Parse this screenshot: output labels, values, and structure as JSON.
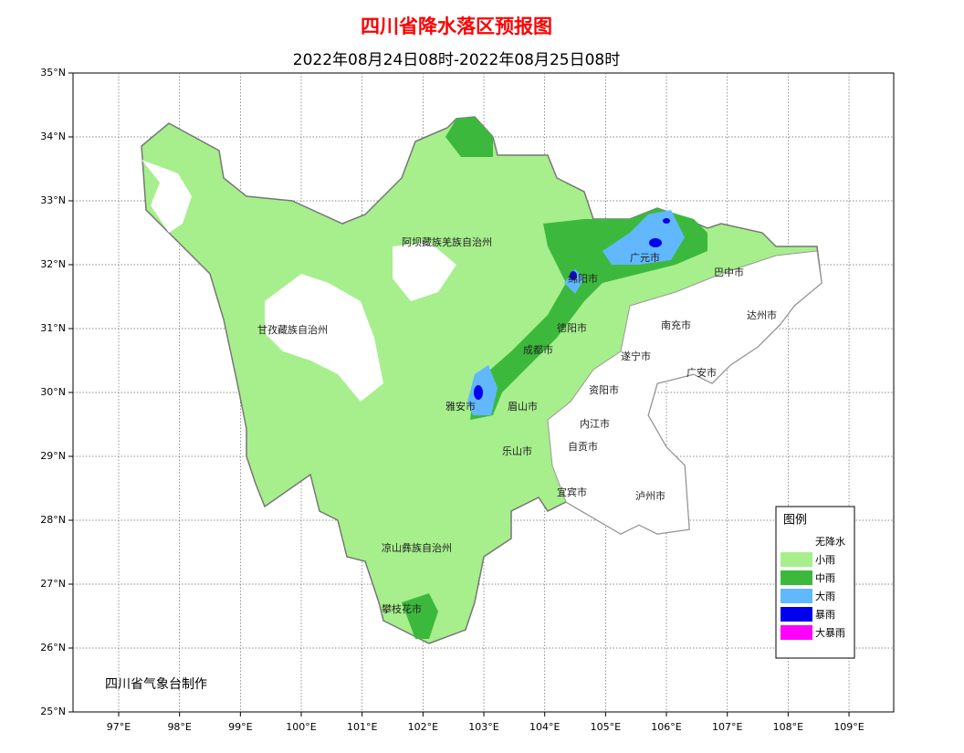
{
  "header": {
    "title": "四川省降水落区预报图",
    "subtitle": "2022年08月24日08时-2022年08月25日08时"
  },
  "axes": {
    "lat_labels": [
      "35°N",
      "34°N",
      "33°N",
      "32°N",
      "31°N",
      "30°N",
      "29°N",
      "28°N",
      "27°N",
      "26°N",
      "25°N"
    ],
    "lon_labels": [
      "97°E",
      "98°E",
      "99°E",
      "100°E",
      "101°E",
      "102°E",
      "103°E",
      "104°E",
      "105°E",
      "106°E",
      "107°E",
      "108°E",
      "109°E"
    ]
  },
  "places": [
    {
      "label": "阿坝藏族羌族自治州"
    },
    {
      "label": "甘孜藏族自治州"
    },
    {
      "label": "广元市"
    },
    {
      "label": "巴中市"
    },
    {
      "label": "绵阳市"
    },
    {
      "label": "南充市"
    },
    {
      "label": "达州市"
    },
    {
      "label": "德阳市"
    },
    {
      "label": "成都市"
    },
    {
      "label": "遂宁市"
    },
    {
      "label": "广安市"
    },
    {
      "label": "资阳市"
    },
    {
      "label": "雅安市"
    },
    {
      "label": "眉山市"
    },
    {
      "label": "内江市"
    },
    {
      "label": "自贡市"
    },
    {
      "label": "乐山市"
    },
    {
      "label": "宜宾市"
    },
    {
      "label": "泸州市"
    },
    {
      "label": "凉山彝族自治州"
    },
    {
      "label": "攀枝花市"
    }
  ],
  "legend": {
    "title": "图例",
    "items": [
      {
        "label": "无降水",
        "color": "#ffffff"
      },
      {
        "label": "小雨",
        "color": "#a6ef8c"
      },
      {
        "label": "中雨",
        "color": "#3cb93c"
      },
      {
        "label": "大雨",
        "color": "#61b8ff"
      },
      {
        "label": "暴雨",
        "color": "#0000ef"
      },
      {
        "label": "大暴雨",
        "color": "#ff00ff"
      }
    ]
  },
  "credit": "四川省气象台制作"
}
